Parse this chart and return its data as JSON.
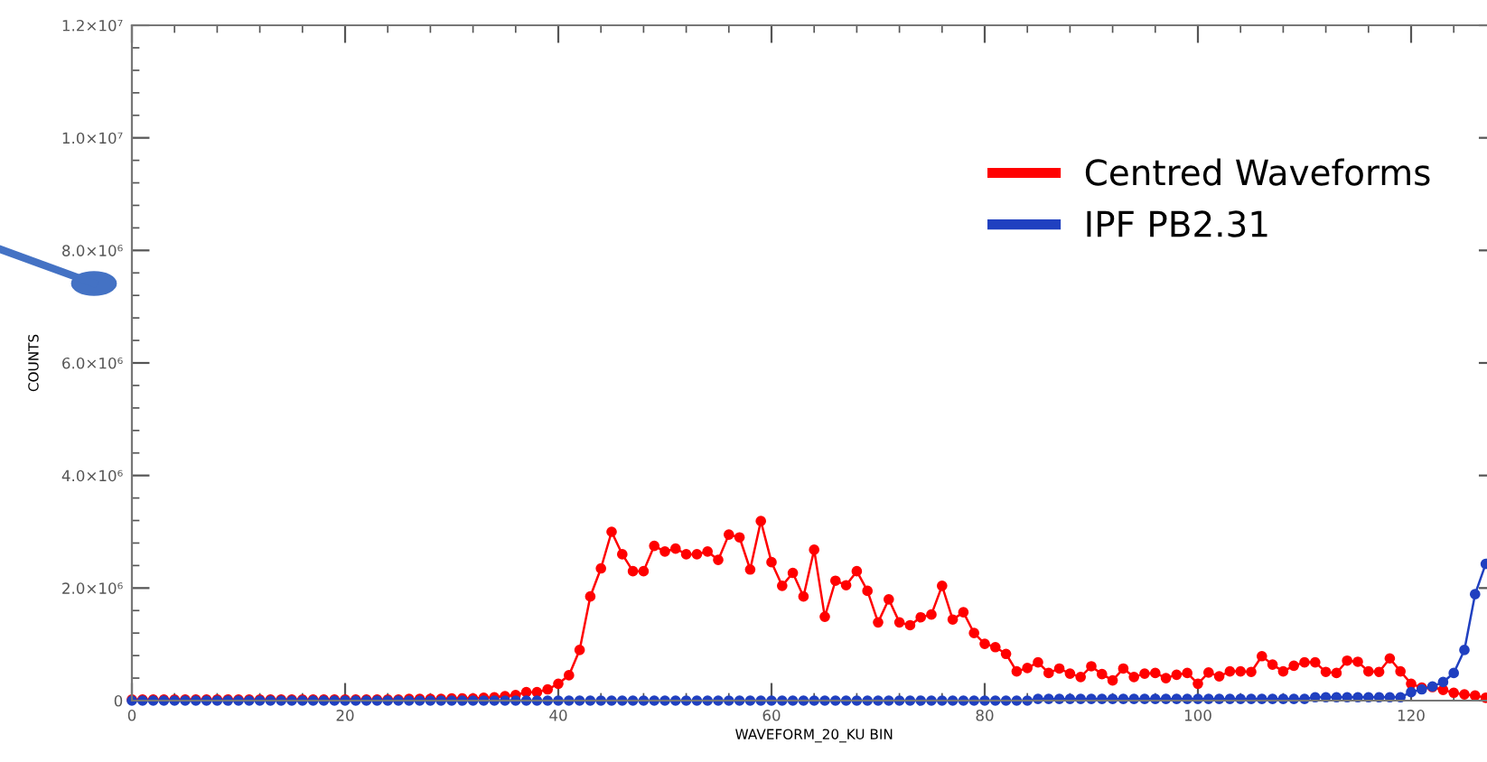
{
  "chart_data": {
    "type": "line",
    "xlabel": "WAVEFORM_20_KU BIN",
    "ylabel": "COUNTS",
    "x": [
      0,
      1,
      2,
      3,
      4,
      5,
      6,
      7,
      8,
      9,
      10,
      11,
      12,
      13,
      14,
      15,
      16,
      17,
      18,
      19,
      20,
      21,
      22,
      23,
      24,
      25,
      26,
      27,
      28,
      29,
      30,
      31,
      32,
      33,
      34,
      35,
      36,
      37,
      38,
      39,
      40,
      41,
      42,
      43,
      44,
      45,
      46,
      47,
      48,
      49,
      50,
      51,
      52,
      53,
      54,
      55,
      56,
      57,
      58,
      59,
      60,
      61,
      62,
      63,
      64,
      65,
      66,
      67,
      68,
      69,
      70,
      71,
      72,
      73,
      74,
      75,
      76,
      77,
      78,
      79,
      80,
      81,
      82,
      83,
      84,
      85,
      86,
      87,
      88,
      89,
      90,
      91,
      92,
      93,
      94,
      95,
      96,
      97,
      98,
      99,
      100,
      101,
      102,
      103,
      104,
      105,
      106,
      107,
      108,
      109,
      110,
      111,
      112,
      113,
      114,
      115,
      116,
      117,
      118,
      119,
      120,
      121,
      122,
      123,
      124,
      125,
      126,
      127
    ],
    "series": [
      {
        "name": "Centred Waveforms",
        "color": "#ff0000",
        "values": [
          20000,
          20000,
          20000,
          20000,
          20000,
          20000,
          20000,
          20000,
          20000,
          20000,
          20000,
          20000,
          20000,
          20000,
          20000,
          20000,
          20000,
          20000,
          20000,
          20000,
          20000,
          20000,
          20000,
          20000,
          20000,
          20000,
          30000,
          30000,
          30000,
          30000,
          40000,
          40000,
          40000,
          50000,
          60000,
          80000,
          100000,
          150000,
          150000,
          200000,
          300000,
          450000,
          900000,
          1850000,
          2350000,
          3000000,
          2600000,
          2300000,
          2300000,
          2750000,
          2650000,
          2700000,
          2600000,
          2600000,
          2650000,
          2500000,
          2950000,
          2900000,
          2330000,
          3190000,
          2460000,
          2040000,
          2270000,
          1850000,
          2680000,
          1490000,
          2130000,
          2050000,
          2300000,
          1950000,
          1390000,
          1800000,
          1390000,
          1340000,
          1480000,
          1530000,
          2040000,
          1440000,
          1570000,
          1200000,
          1010000,
          950000,
          830000,
          520000,
          580000,
          680000,
          490000,
          570000,
          480000,
          420000,
          610000,
          470000,
          360000,
          570000,
          420000,
          480000,
          490000,
          400000,
          460000,
          490000,
          300000,
          500000,
          430000,
          520000,
          520000,
          510000,
          790000,
          640000,
          520000,
          620000,
          680000,
          680000,
          510000,
          490000,
          710000,
          690000,
          520000,
          510000,
          750000,
          520000,
          300000,
          230000,
          240000,
          190000,
          140000,
          110000,
          90000,
          50000
        ]
      },
      {
        "name": "IPF PB2.31",
        "color": "#2040c0",
        "values": [
          0,
          0,
          0,
          0,
          0,
          0,
          0,
          0,
          0,
          0,
          0,
          0,
          0,
          0,
          0,
          0,
          0,
          0,
          0,
          0,
          0,
          0,
          0,
          0,
          0,
          0,
          0,
          0,
          0,
          0,
          0,
          0,
          0,
          0,
          0,
          0,
          0,
          0,
          0,
          0,
          0,
          0,
          0,
          0,
          0,
          0,
          0,
          0,
          0,
          0,
          0,
          0,
          0,
          0,
          0,
          0,
          0,
          0,
          0,
          0,
          0,
          0,
          0,
          0,
          0,
          0,
          0,
          0,
          0,
          0,
          0,
          0,
          0,
          0,
          0,
          0,
          0,
          0,
          0,
          0,
          0,
          0,
          0,
          0,
          0,
          30000,
          30000,
          30000,
          30000,
          30000,
          30000,
          30000,
          30000,
          30000,
          30000,
          30000,
          30000,
          30000,
          30000,
          30000,
          30000,
          30000,
          30000,
          30000,
          30000,
          30000,
          30000,
          30000,
          30000,
          30000,
          30000,
          60000,
          60000,
          60000,
          60000,
          60000,
          60000,
          60000,
          60000,
          60000,
          150000,
          200000,
          250000,
          330000,
          490000,
          900000,
          1890000,
          2430000
        ]
      }
    ],
    "xlim": [
      0,
      128
    ],
    "xticks": [
      0,
      20,
      40,
      60,
      80,
      100,
      120
    ],
    "ylim": [
      0,
      12000000
    ],
    "yticks": [
      0,
      {
        "value": 2000000,
        "label": "2.0×10⁶"
      },
      {
        "value": 4000000,
        "label": "4.0×10⁶"
      },
      {
        "value": 6000000,
        "label": "6.0×10⁶"
      },
      {
        "value": 8000000,
        "label": "8.0×10⁶"
      },
      {
        "value": 10000000,
        "label": "1.0×10⁷"
      },
      {
        "value": 12000000,
        "label": "1.2×10⁷"
      }
    ],
    "marker": "circle",
    "line_style": "solid",
    "grid": false,
    "legend": "top right"
  }
}
